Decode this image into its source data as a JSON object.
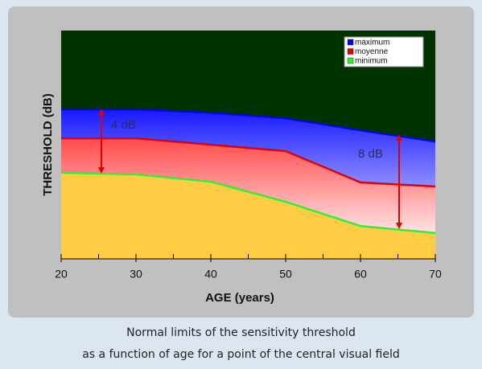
{
  "chart_data": {
    "type": "area",
    "x": [
      20,
      30,
      40,
      50,
      60,
      70
    ],
    "xlim": [
      20,
      70
    ],
    "xticks": [
      20,
      30,
      40,
      50,
      60,
      70
    ],
    "xminorticks": [
      25,
      35,
      45,
      55,
      65
    ],
    "ylim": [
      0,
      100
    ],
    "x_label": "AGE (years)",
    "y_label": "THRESHOLD (dB)",
    "background": "#003300",
    "legend": "top-right",
    "series": [
      {
        "name": "maximum",
        "color": "#0000ff",
        "area_gradient": [
          "#1818ff",
          "#dcdcff"
        ],
        "values": [
          65.5,
          65.5,
          64,
          61.6,
          56.3,
          51.4
        ]
      },
      {
        "name": "moyenne",
        "color": "#e00000",
        "area_gradient": [
          "#ff4a4a",
          "#ffeaea"
        ],
        "values": [
          52.8,
          52.8,
          50,
          47.2,
          33.5,
          31.7
        ]
      },
      {
        "name": "minimum",
        "color": "#33ee33",
        "area_gradient": [
          "#ffcc44",
          "#ffcc44"
        ],
        "values": [
          37.7,
          37,
          33.8,
          25,
          14.4,
          11.3
        ]
      }
    ],
    "annotations": [
      "4 dB",
      "8 dB"
    ]
  },
  "caption": [
    "Normal limits of the sensitivity threshold",
    "as a function of age for a point of the central visual field"
  ]
}
